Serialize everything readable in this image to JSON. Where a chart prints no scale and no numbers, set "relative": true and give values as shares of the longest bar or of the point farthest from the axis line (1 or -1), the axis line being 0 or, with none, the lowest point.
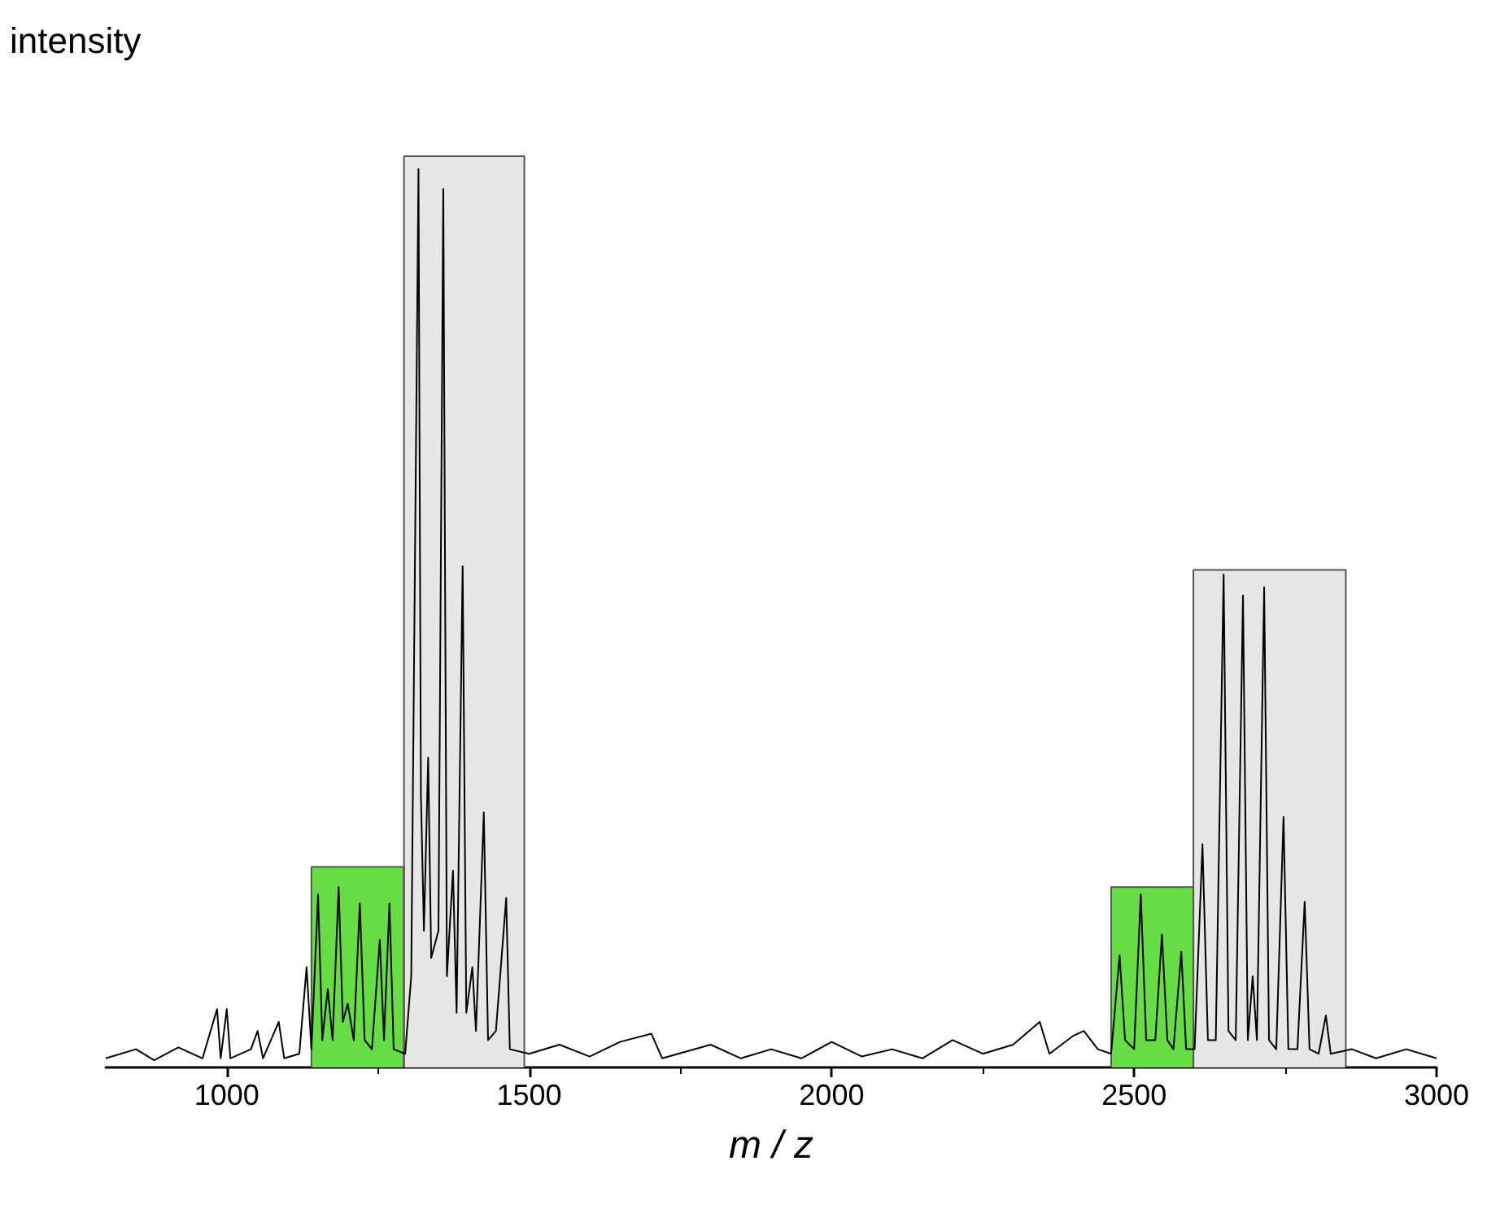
{
  "chart_data": {
    "type": "line",
    "relative": true,
    "xlabel": "m / z",
    "ylabel": "intensity",
    "xlim": [
      800,
      3000
    ],
    "xticks": [
      1000,
      1500,
      2000,
      2500,
      3000
    ],
    "tick_labels": "x",
    "marker": "none",
    "series": [
      {
        "type": "area",
        "color": "#66dd44",
        "x": [
          1140,
          1140,
          1293,
          1293
        ],
        "values": [
          0,
          0.22,
          0.22,
          0
        ]
      },
      {
        "type": "area",
        "color": "#e6e6e6",
        "x": [
          1293,
          1293,
          1492,
          1492
        ],
        "values": [
          0,
          1,
          1,
          0
        ]
      },
      {
        "type": "area",
        "color": "#66dd44",
        "x": [
          2462,
          2462,
          2598,
          2598
        ],
        "values": [
          0,
          0.198,
          0.198,
          0
        ]
      },
      {
        "type": "area",
        "color": "#e6e6e6",
        "x": [
          2598,
          2598,
          2850,
          2850
        ],
        "values": [
          0,
          0.546,
          0.546,
          0
        ]
      },
      {
        "color": "#000000",
        "x": [
          800,
          850,
          880,
          920,
          960,
          984,
          990,
          1000,
          1006,
          1040,
          1051,
          1060,
          1086,
          1095,
          1120,
          1132,
          1140,
          1151,
          1158,
          1167,
          1175,
          1185,
          1192,
          1200,
          1210,
          1220,
          1228,
          1240,
          1253,
          1260,
          1269,
          1276,
          1295,
          1305,
          1317,
          1321,
          1326,
          1333,
          1338,
          1350,
          1358,
          1364,
          1374,
          1380,
          1390,
          1396,
          1406,
          1412,
          1425,
          1432,
          1445,
          1462,
          1468,
          1500,
          1550,
          1600,
          1650,
          1702,
          1720,
          1800,
          1850,
          1900,
          1950,
          2000,
          2050,
          2100,
          2150,
          2200,
          2250,
          2300,
          2344,
          2360,
          2400,
          2417,
          2440,
          2462,
          2476,
          2485,
          2500,
          2511,
          2520,
          2535,
          2546,
          2555,
          2565,
          2578,
          2586,
          2600,
          2613,
          2622,
          2635,
          2648,
          2656,
          2668,
          2680,
          2688,
          2696,
          2703,
          2715,
          2723,
          2735,
          2747,
          2755,
          2770,
          2782,
          2790,
          2805,
          2817,
          2825,
          2860,
          2900,
          2950,
          3000
        ],
        "values": [
          0.01,
          0.02,
          0.008,
          0.022,
          0.01,
          0.064,
          0.01,
          0.064,
          0.01,
          0.02,
          0.04,
          0.01,
          0.05,
          0.01,
          0.015,
          0.11,
          0.02,
          0.19,
          0.03,
          0.086,
          0.03,
          0.198,
          0.05,
          0.07,
          0.03,
          0.18,
          0.03,
          0.02,
          0.14,
          0.03,
          0.18,
          0.02,
          0.015,
          0.1,
          0.986,
          0.3,
          0.15,
          0.34,
          0.12,
          0.15,
          0.964,
          0.1,
          0.216,
          0.06,
          0.55,
          0.06,
          0.11,
          0.04,
          0.28,
          0.03,
          0.04,
          0.186,
          0.02,
          0.015,
          0.025,
          0.012,
          0.028,
          0.037,
          0.01,
          0.025,
          0.01,
          0.02,
          0.01,
          0.028,
          0.012,
          0.02,
          0.01,
          0.03,
          0.015,
          0.025,
          0.05,
          0.015,
          0.035,
          0.04,
          0.02,
          0.015,
          0.123,
          0.03,
          0.02,
          0.19,
          0.03,
          0.03,
          0.146,
          0.03,
          0.02,
          0.127,
          0.02,
          0.02,
          0.245,
          0.03,
          0.03,
          0.541,
          0.04,
          0.03,
          0.518,
          0.03,
          0.1,
          0.03,
          0.527,
          0.03,
          0.02,
          0.275,
          0.02,
          0.02,
          0.182,
          0.02,
          0.015,
          0.057,
          0.015,
          0.02,
          0.01,
          0.02,
          0.01
        ]
      }
    ]
  }
}
